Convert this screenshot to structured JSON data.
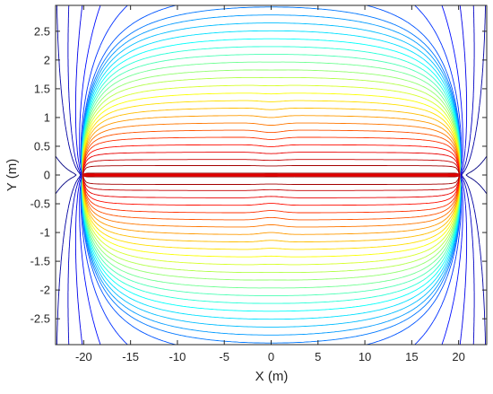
{
  "chart_data": {
    "type": "contour",
    "xlabel": "X  (m)",
    "ylabel": "Y  (m)",
    "xlim": [
      -23,
      23
    ],
    "ylim": [
      -2.95,
      2.95
    ],
    "x_ticks": [
      -20,
      -15,
      -10,
      -5,
      0,
      5,
      10,
      15,
      20
    ],
    "x_tick_labels": [
      "-20",
      "-15",
      "-10",
      "-5",
      "0",
      "5",
      "10",
      "15",
      "20"
    ],
    "y_ticks": [
      2.5,
      2,
      1.5,
      1,
      0.5,
      0,
      -0.5,
      -1,
      -1.5,
      -2,
      -2.5
    ],
    "y_tick_labels": [
      "2.5",
      "2",
      "1.5",
      "1",
      "0.5",
      "0",
      "-0.5",
      "-1",
      "-1.5",
      "-2",
      "-2.5"
    ],
    "grid": false,
    "colormap": "jet",
    "contour_levels": 30,
    "conductor": {
      "x": [
        -20,
        20
      ],
      "y": [
        0,
        0
      ],
      "color": "#e00000"
    }
  }
}
